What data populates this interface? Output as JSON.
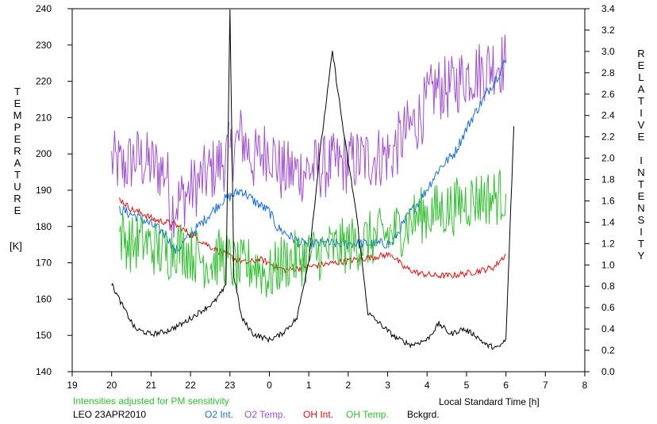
{
  "chart_data": {
    "type": "line",
    "x_ticks": [
      19,
      20,
      21,
      22,
      23,
      0,
      1,
      2,
      3,
      4,
      5,
      6,
      7,
      8
    ],
    "xlabel": "Local Standard Time [h]",
    "ylabel_left": "TEMPERATURE",
    "ylabel_left_unit": "[K]",
    "ylabel_right": "RELATIVE INTENSITY",
    "ylim_left": [
      140,
      240
    ],
    "ylim_right": [
      0.0,
      3.4
    ],
    "y_left_ticks": [
      140,
      150,
      160,
      170,
      180,
      190,
      200,
      210,
      220,
      230,
      240
    ],
    "y_right_ticks": [
      "0.0",
      "0.2",
      "0.4",
      "0.6",
      "0.8",
      "1.0",
      "1.2",
      "1.4",
      "1.6",
      "1.8",
      "2.0",
      "2.2",
      "2.4",
      "2.6",
      "2.8",
      "3.0",
      "3.2",
      "3.4"
    ],
    "grid": false,
    "note": "Intensities adjusted for PM sensitivity",
    "station": "LEO 23APR2010",
    "legend_position": "bottom",
    "legend": [
      {
        "name": "O2 Int.",
        "color": "#1a6fd9"
      },
      {
        "name": "O2 Temp.",
        "color": "#a050d0"
      },
      {
        "name": "OH Int.",
        "color": "#e01010"
      },
      {
        "name": "OH Temp.",
        "color": "#30c030"
      },
      {
        "name": "Bckgrd.",
        "color": "#000000"
      }
    ],
    "series": [
      {
        "name": "O2 Temp.",
        "axis": "left",
        "color": "#a050d0",
        "noise": 9,
        "x": [
          20.0,
          20.3,
          20.6,
          21.0,
          21.4,
          21.5,
          23.0,
          23.3,
          23.6,
          24.0,
          24.3,
          24.7,
          27.1,
          27.4,
          27.8,
          28.2,
          28.6,
          29.0,
          29.4,
          29.7,
          30.0
        ],
        "y": [
          198,
          196,
          199,
          197,
          195,
          185,
          200,
          205,
          198,
          202,
          195,
          195,
          200,
          205,
          210,
          218,
          218,
          222,
          223,
          225,
          225
        ]
      },
      {
        "name": "O2 Int.",
        "axis": "right",
        "color": "#1a6fd9",
        "noise": 0.05,
        "x": [
          20.2,
          20.6,
          21.0,
          21.4,
          21.6,
          22.8,
          23.3,
          23.6,
          24.0,
          24.2,
          24.6,
          24.8,
          27.1,
          27.5,
          27.9,
          28.3,
          28.7,
          29.1,
          29.5,
          29.8,
          30.0
        ],
        "y": [
          1.52,
          1.46,
          1.38,
          1.28,
          1.12,
          1.6,
          1.7,
          1.6,
          1.5,
          1.35,
          1.25,
          1.2,
          1.2,
          1.45,
          1.65,
          1.9,
          2.05,
          2.35,
          2.6,
          2.78,
          2.92
        ]
      },
      {
        "name": "OH Int.",
        "axis": "right",
        "color": "#e01010",
        "noise": 0.03,
        "x": [
          20.2,
          20.5,
          20.8,
          21.1,
          21.4,
          21.6,
          22.6,
          23.0,
          23.4,
          23.8,
          24.2,
          24.4,
          27.1,
          27.4,
          27.8,
          28.2,
          28.6,
          29.0,
          29.4,
          29.7,
          30.0
        ],
        "y": [
          1.62,
          1.52,
          1.48,
          1.42,
          1.4,
          1.38,
          1.15,
          1.08,
          1.02,
          1.05,
          0.98,
          0.95,
          1.1,
          0.98,
          0.92,
          0.9,
          0.9,
          0.92,
          0.95,
          0.98,
          1.1
        ]
      },
      {
        "name": "OH Temp.",
        "axis": "left",
        "color": "#30c030",
        "noise": 8,
        "x": [
          20.2,
          20.5,
          20.8,
          21.1,
          21.4,
          21.6,
          22.5,
          22.8,
          23.2,
          23.6,
          24.0,
          24.3,
          27.1,
          27.4,
          27.8,
          28.2,
          28.6,
          29.0,
          29.4,
          29.7,
          30.0
        ],
        "y": [
          178,
          175,
          176,
          174,
          172,
          175,
          170,
          172,
          168,
          170,
          166,
          170,
          178,
          180,
          183,
          184,
          185,
          187,
          188,
          188,
          189
        ]
      },
      {
        "name": "Bckgrd.",
        "axis": "right",
        "color": "#000000",
        "noise": 0.025,
        "x": [
          20.0,
          20.3,
          20.6,
          21.0,
          21.4,
          21.8,
          22.2,
          22.6,
          22.9,
          23.0,
          23.1,
          23.3,
          23.6,
          24.0,
          24.3,
          24.7,
          25.0,
          25.3,
          25.6,
          25.9,
          26.2,
          26.5,
          26.8,
          27.2,
          27.6,
          28.0,
          28.3,
          28.6,
          28.9,
          29.2,
          29.5,
          29.8,
          30.0,
          30.2
        ],
        "y": [
          0.82,
          0.6,
          0.4,
          0.35,
          0.38,
          0.45,
          0.55,
          0.65,
          0.8,
          3.4,
          0.9,
          0.5,
          0.35,
          0.3,
          0.35,
          0.5,
          1.05,
          2.1,
          3.0,
          2.2,
          1.5,
          0.55,
          0.45,
          0.32,
          0.25,
          0.3,
          0.45,
          0.35,
          0.4,
          0.35,
          0.25,
          0.22,
          0.3,
          2.3
        ]
      }
    ]
  }
}
